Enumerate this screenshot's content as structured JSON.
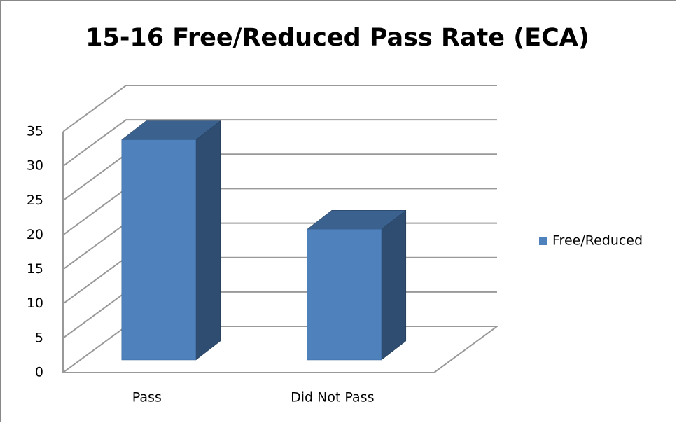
{
  "chart_data": {
    "type": "bar3d",
    "title": "15-16 Free/Reduced Pass Rate (ECA)",
    "categories": [
      "Pass",
      "Did Not Pass"
    ],
    "series": [
      {
        "name": "Free/Reduced",
        "color": "#4f81bd",
        "values": [
          32,
          19
        ]
      }
    ],
    "ylim": [
      0,
      35
    ],
    "yticks": [
      0,
      5,
      10,
      15,
      20,
      25,
      30,
      35
    ],
    "grid": true,
    "legend": "right"
  }
}
